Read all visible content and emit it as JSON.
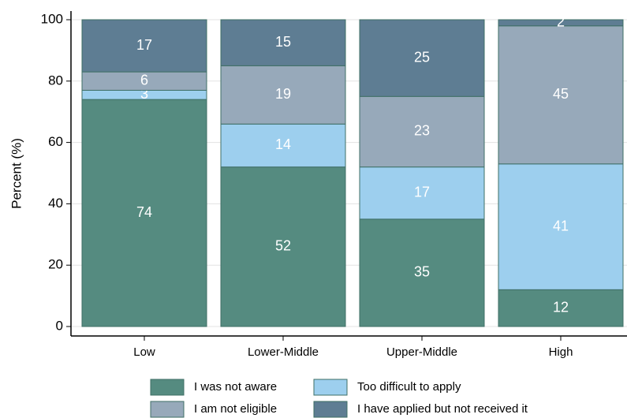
{
  "chart_data": {
    "type": "stacked-bar",
    "y_label": "Percent (%)",
    "categories": [
      "Low",
      "Lower-Middle",
      "Upper-Middle",
      "High"
    ],
    "series": [
      {
        "name": "I was not aware",
        "color": "#558b80",
        "values": [
          74,
          52,
          35,
          12
        ]
      },
      {
        "name": "Too difficult to apply",
        "color": "#9dcfee",
        "values": [
          3,
          14,
          17,
          41
        ]
      },
      {
        "name": "I am not eligible",
        "color": "#97a9ba",
        "values": [
          6,
          19,
          23,
          45
        ]
      },
      {
        "name": "I have applied but not received it",
        "color": "#5e7d93",
        "values": [
          17,
          15,
          25,
          2
        ]
      }
    ],
    "ylim": [
      0,
      100
    ],
    "yticks": [
      0,
      20,
      40,
      60,
      80,
      100
    ],
    "grid": true
  }
}
